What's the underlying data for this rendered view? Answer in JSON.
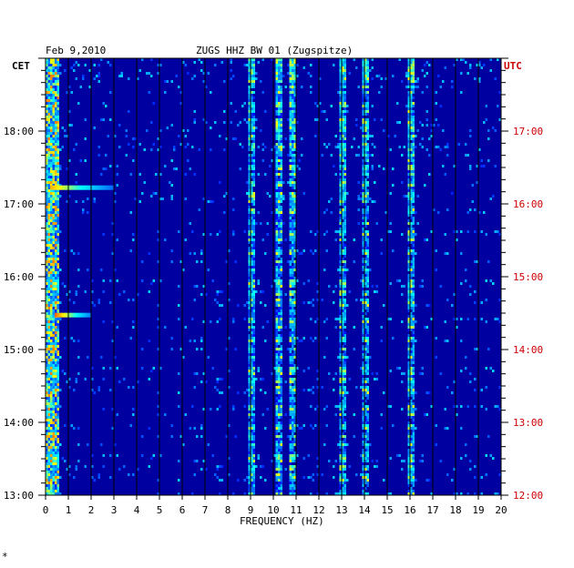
{
  "header": {
    "date": "Feb 9,2010",
    "station": "ZUGS HHZ BW 01 (Zugspitze)",
    "left_tz": "CET",
    "right_tz": "UTC"
  },
  "corner_mark": "*",
  "colors": {
    "axis": "#000000",
    "utc": "#cc0000",
    "background": "#0000a0"
  },
  "chart_data": {
    "type": "heatmap",
    "title": "ZUGS HHZ BW 01 (Zugspitze)",
    "xlabel": "FREQUENCY (HZ)",
    "xlim": [
      0,
      20
    ],
    "x_ticks": [
      "0",
      "1",
      "2",
      "3",
      "4",
      "5",
      "6",
      "7",
      "8",
      "9",
      "10",
      "11",
      "12",
      "13",
      "14",
      "15",
      "16",
      "17",
      "18",
      "19",
      "20"
    ],
    "y_ticks_cet": [
      "18:00",
      "17:00",
      "16:00",
      "15:00",
      "14:00",
      "13:00"
    ],
    "y_ticks_utc": [
      "17:00",
      "16:00",
      "15:00",
      "14:00",
      "13:00",
      "12:00"
    ],
    "time_range_cet": [
      "13:00",
      "19:00"
    ],
    "grid": true,
    "dominant_lines_hz": [
      0.3,
      9.0,
      10.2,
      10.8,
      13.0,
      14.0,
      16.0
    ],
    "bursts": [
      {
        "time_cet": "17:13",
        "fmin": 0.2,
        "fmax": 3.0,
        "intensity": 0.85
      },
      {
        "time_cet": "15:28",
        "fmin": 0.4,
        "fmax": 2.0,
        "intensity": 0.9
      }
    ]
  }
}
